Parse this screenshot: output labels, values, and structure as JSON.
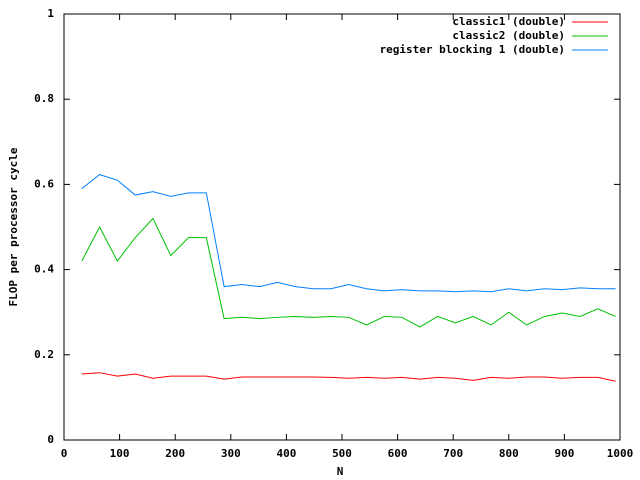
{
  "chart_data": {
    "type": "line",
    "xlabel": "N",
    "ylabel": "FLOP per processor cycle",
    "x": [
      32,
      64,
      96,
      128,
      160,
      192,
      224,
      256,
      288,
      320,
      352,
      384,
      416,
      448,
      480,
      512,
      544,
      576,
      608,
      640,
      672,
      704,
      736,
      768,
      800,
      832,
      864,
      896,
      928,
      960,
      992
    ],
    "series": [
      {
        "name": "classic1 (double)",
        "color": "#ff0000",
        "values": [
          0.155,
          0.158,
          0.15,
          0.155,
          0.145,
          0.15,
          0.15,
          0.15,
          0.143,
          0.148,
          0.148,
          0.148,
          0.148,
          0.148,
          0.147,
          0.145,
          0.147,
          0.145,
          0.147,
          0.143,
          0.147,
          0.145,
          0.14,
          0.147,
          0.145,
          0.148,
          0.148,
          0.145,
          0.147,
          0.147,
          0.138
        ]
      },
      {
        "name": "classic2 (double)",
        "color": "#00c000",
        "values": [
          0.42,
          0.5,
          0.42,
          0.475,
          0.52,
          0.433,
          0.475,
          0.475,
          0.285,
          0.288,
          0.285,
          0.288,
          0.29,
          0.288,
          0.29,
          0.288,
          0.27,
          0.29,
          0.288,
          0.265,
          0.29,
          0.275,
          0.29,
          0.27,
          0.3,
          0.27,
          0.29,
          0.298,
          0.29,
          0.308,
          0.29
        ]
      },
      {
        "name": "register blocking 1 (double)",
        "color": "#0080ff",
        "values": [
          0.59,
          0.623,
          0.61,
          0.575,
          0.583,
          0.572,
          0.58,
          0.58,
          0.36,
          0.365,
          0.36,
          0.37,
          0.36,
          0.355,
          0.355,
          0.365,
          0.355,
          0.35,
          0.353,
          0.35,
          0.35,
          0.348,
          0.35,
          0.348,
          0.355,
          0.35,
          0.355,
          0.353,
          0.357,
          0.355,
          0.355
        ]
      }
    ],
    "xlim": [
      0,
      1000
    ],
    "xticks": [
      0,
      100,
      200,
      300,
      400,
      500,
      600,
      700,
      800,
      900,
      1000
    ],
    "ylim": [
      0,
      1
    ],
    "yticks": [
      0,
      0.2,
      0.4,
      0.6,
      0.8,
      1
    ],
    "grid": false,
    "legend": "top-right"
  }
}
